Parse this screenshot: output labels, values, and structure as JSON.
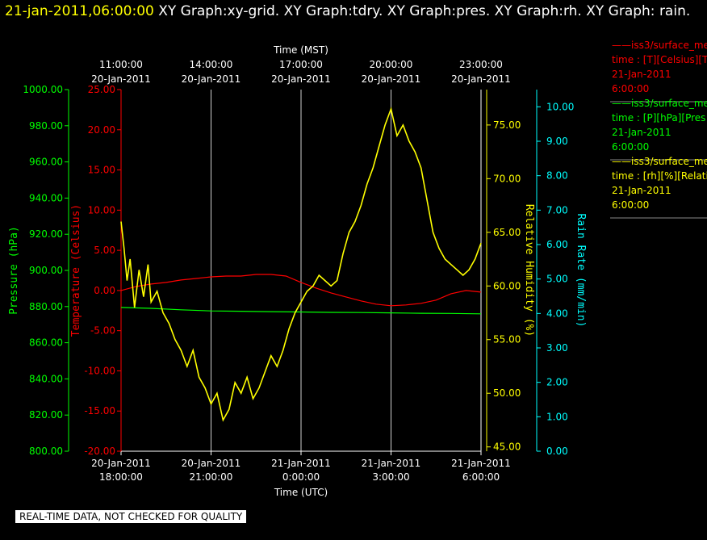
{
  "header": {
    "timestamp": "21-jan-2011,06:00:00",
    "graphs": " XY Graph:xy-grid.  XY Graph:tdry.  XY Graph:pres.  XY Graph:rh.  XY Graph: rain."
  },
  "disclaimer": "REAL-TIME DATA, NOT CHECKED FOR QUALITY",
  "colors": {
    "temperature": "#ff0000",
    "pressure": "#00ff00",
    "humidity": "#ffff00",
    "rain": "#00ffff",
    "grid": "#ffffff"
  },
  "chart_data": {
    "type": "line",
    "top_axis": {
      "title": "Time (MST)",
      "ticks": [
        [
          "11:00:00",
          "20-Jan-2011"
        ],
        [
          "14:00:00",
          "20-Jan-2011"
        ],
        [
          "17:00:00",
          "20-Jan-2011"
        ],
        [
          "20:00:00",
          "20-Jan-2011"
        ],
        [
          "23:00:00",
          "20-Jan-2011"
        ]
      ]
    },
    "bottom_axis": {
      "title": "Time (UTC)",
      "ticks": [
        [
          "20-Jan-2011",
          "18:00:00"
        ],
        [
          "20-Jan-2011",
          "21:00:00"
        ],
        [
          "21-Jan-2011",
          "0:00:00"
        ],
        [
          "21-Jan-2011",
          "3:00:00"
        ],
        [
          "21-Jan-2011",
          "6:00:00"
        ]
      ]
    },
    "xlim": [
      0,
      12
    ],
    "axes": {
      "pressure": {
        "title": "Pressure (hPa)",
        "ylim": [
          800,
          1000
        ],
        "ticks": [
          "800.00",
          "820.00",
          "840.00",
          "860.00",
          "880.00",
          "900.00",
          "920.00",
          "940.00",
          "960.00",
          "980.00",
          "1000.00"
        ]
      },
      "temperature": {
        "title": "Temperature (Celsius)",
        "ylim": [
          -20,
          25
        ],
        "ticks": [
          "-20.00",
          "-15.00",
          "-10.00",
          "-5.00",
          "0.00",
          "5.00",
          "10.00",
          "15.00",
          "20.00",
          "25.00"
        ]
      },
      "humidity": {
        "title": "Relative Humidity (%)",
        "ylim": [
          44.6,
          78.3
        ],
        "ticks": [
          "45.00",
          "50.00",
          "55.00",
          "60.00",
          "65.00",
          "70.00",
          "75.00"
        ]
      },
      "rain": {
        "title": "Rain Rate (mm/min)",
        "ylim": [
          0,
          10.5
        ],
        "ticks": [
          "0.00",
          "1.00",
          "2.00",
          "3.00",
          "4.00",
          "5.00",
          "6.00",
          "7.00",
          "8.00",
          "9.00",
          "10.00"
        ]
      }
    },
    "series": [
      {
        "name": "temperature",
        "x": [
          0,
          0.5,
          1,
          1.5,
          2,
          2.5,
          3,
          3.5,
          4,
          4.5,
          5,
          5.5,
          6,
          6.5,
          7,
          7.5,
          8,
          8.5,
          9,
          9.5,
          10,
          10.5,
          11,
          11.5,
          12
        ],
        "y": [
          0.0,
          0.5,
          0.8,
          1.0,
          1.3,
          1.5,
          1.7,
          1.8,
          1.8,
          2.0,
          2.0,
          1.8,
          1.0,
          0.3,
          -0.3,
          -0.8,
          -1.3,
          -1.7,
          -1.9,
          -1.8,
          -1.6,
          -1.2,
          -0.4,
          0.0,
          -0.2
        ]
      },
      {
        "name": "pressure",
        "x": [
          0,
          1,
          2,
          3,
          4,
          5,
          6,
          7,
          8,
          9,
          10,
          11,
          12
        ],
        "y": [
          879.5,
          879.0,
          878.2,
          877.6,
          877.4,
          877.2,
          877.0,
          876.8,
          876.7,
          876.5,
          876.3,
          876.2,
          876.0
        ]
      },
      {
        "name": "humidity",
        "x": [
          0,
          0.1,
          0.2,
          0.3,
          0.45,
          0.6,
          0.75,
          0.9,
          1.0,
          1.2,
          1.4,
          1.6,
          1.8,
          2.0,
          2.2,
          2.4,
          2.6,
          2.8,
          3.0,
          3.2,
          3.4,
          3.6,
          3.8,
          4.0,
          4.2,
          4.4,
          4.6,
          4.8,
          5.0,
          5.2,
          5.4,
          5.6,
          5.8,
          6.0,
          6.2,
          6.4,
          6.6,
          6.8,
          7.0,
          7.2,
          7.4,
          7.6,
          7.8,
          8.0,
          8.2,
          8.4,
          8.6,
          8.8,
          9.0,
          9.2,
          9.4,
          9.6,
          9.8,
          10.0,
          10.2,
          10.4,
          10.6,
          10.8,
          11.0,
          11.2,
          11.4,
          11.6,
          11.8,
          12.0
        ],
        "y": [
          66.0,
          63.5,
          60.5,
          62.5,
          58.0,
          61.5,
          59.0,
          62.0,
          58.5,
          59.5,
          57.5,
          56.5,
          55.0,
          54.0,
          52.5,
          54.0,
          51.5,
          50.5,
          49.0,
          50.0,
          47.5,
          48.5,
          51.0,
          50.0,
          51.5,
          49.5,
          50.5,
          52.0,
          53.5,
          52.5,
          54.0,
          56.0,
          57.5,
          58.5,
          59.5,
          60.0,
          61.0,
          60.5,
          60.0,
          60.5,
          63.0,
          65.0,
          66.0,
          67.5,
          69.5,
          71.0,
          73.0,
          75.0,
          76.5,
          74.0,
          75.0,
          73.5,
          72.5,
          71.0,
          68.0,
          65.0,
          63.5,
          62.5,
          62.0,
          61.5,
          61.0,
          61.5,
          62.5,
          64.0
        ]
      }
    ],
    "legend": [
      {
        "line": "——iss3/surface_me",
        "desc": "time : [T][Celsius][T",
        "date": "21-Jan-2011",
        "time": "6:00:00"
      },
      {
        "line": "——iss3/surface_me",
        "desc": "time : [P][hPa][Pres",
        "date": "21-Jan-2011",
        "time": "6:00:00"
      },
      {
        "line": "——iss3/surface_me",
        "desc": "time : [rh][%][Relati",
        "date": "21-Jan-2011",
        "time": "6:00:00"
      }
    ]
  }
}
